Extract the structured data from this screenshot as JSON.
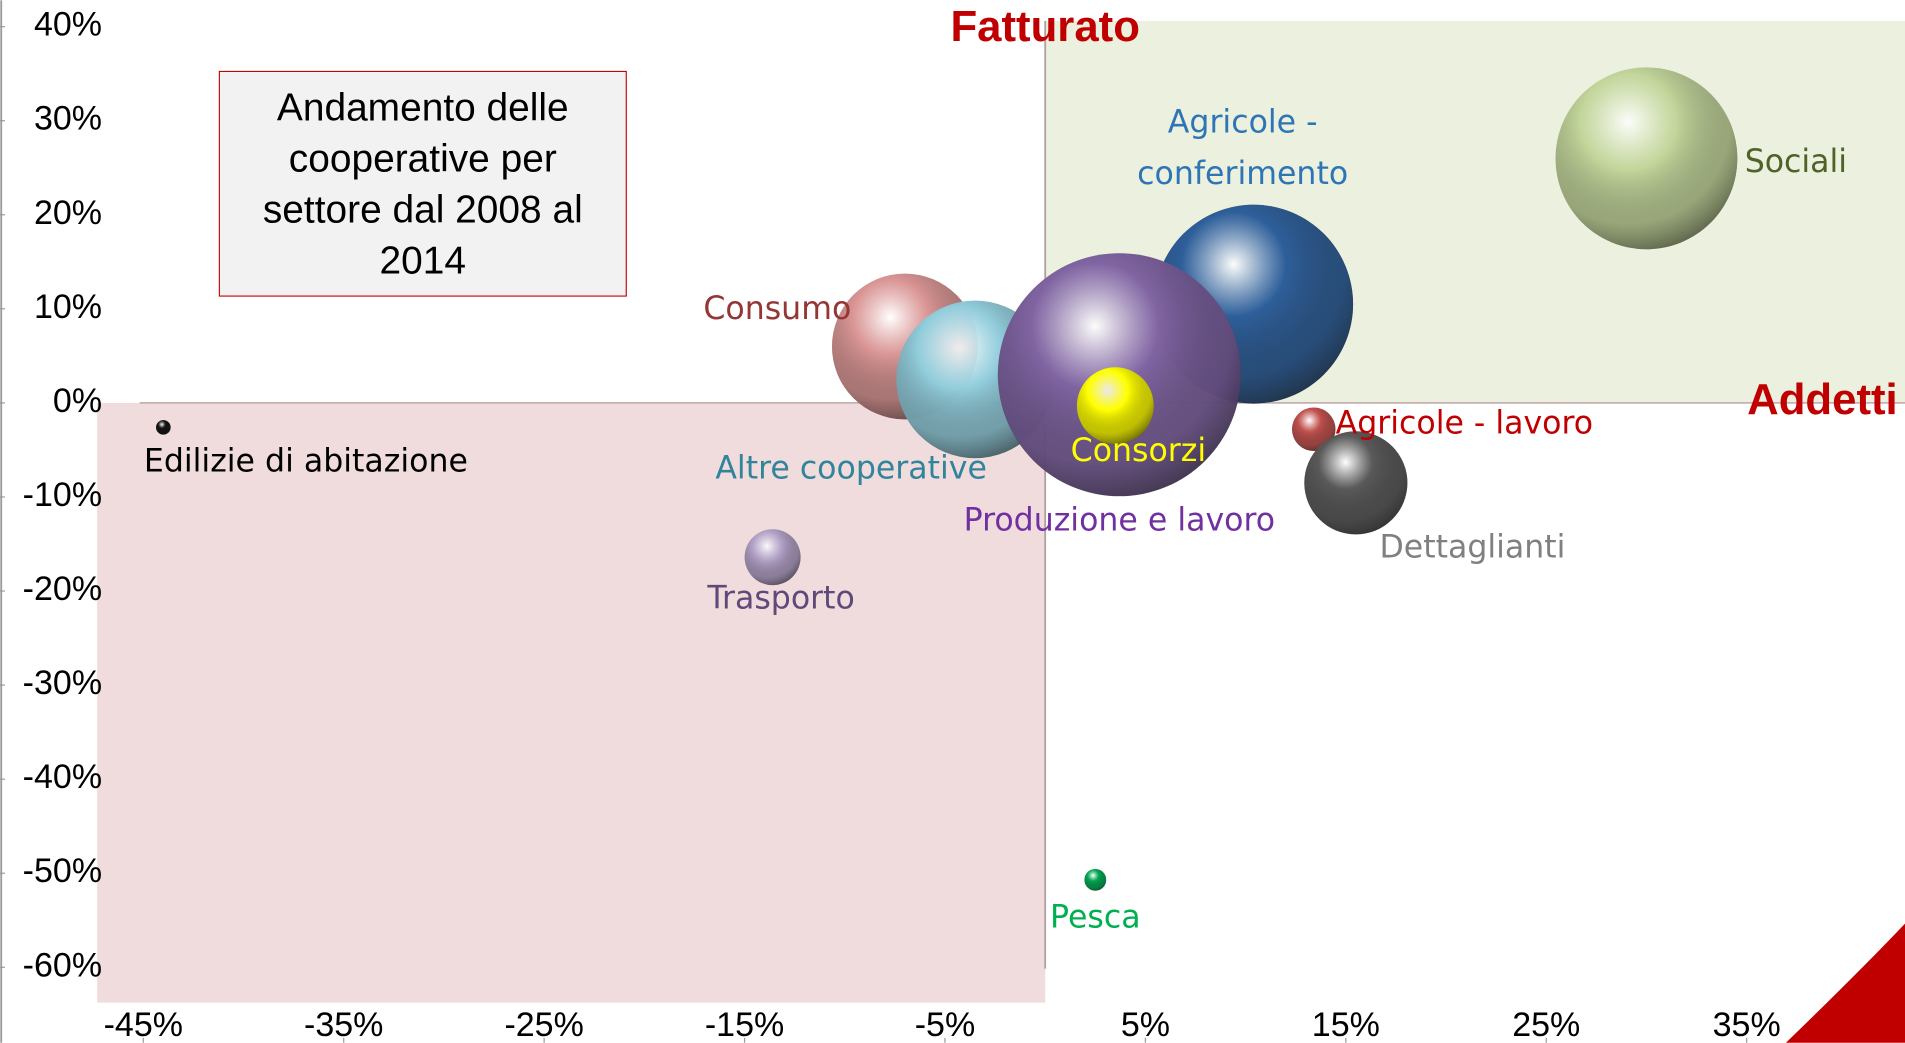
{
  "chart_data": {
    "type": "bubble",
    "title": "Andamento delle cooperative per settore dal 2008 al 2014",
    "x_label": "Addetti",
    "y_label": "Fatturato",
    "xlim": [
      -47.3,
      42.9
    ],
    "ylim": [
      -64.4,
      42.8
    ],
    "xticks": [
      {
        "value": -45,
        "label": "-45%"
      },
      {
        "value": -35,
        "label": "-35%"
      },
      {
        "value": -25,
        "label": "-25%"
      },
      {
        "value": -15,
        "label": "-15%"
      },
      {
        "value": -5,
        "label": "-5%"
      },
      {
        "value": 5,
        "label": "5%"
      },
      {
        "value": 15,
        "label": "15%"
      },
      {
        "value": 25,
        "label": "25%"
      },
      {
        "value": 35,
        "label": "35%"
      }
    ],
    "yticks": [
      {
        "value": 40,
        "label": "40%"
      },
      {
        "value": 30,
        "label": "30%"
      },
      {
        "value": 20,
        "label": "20%"
      },
      {
        "value": 10,
        "label": "10%"
      },
      {
        "value": 0,
        "label": "0%"
      },
      {
        "value": -10,
        "label": "-10%"
      },
      {
        "value": -20,
        "label": "-20%"
      },
      {
        "value": -30,
        "label": "-30%"
      },
      {
        "value": -40,
        "label": "-40%"
      },
      {
        "value": -50,
        "label": "-50%"
      },
      {
        "value": -60,
        "label": "-60%"
      }
    ],
    "points": [
      {
        "name": "Edilizie di abitazione",
        "x": -44,
        "y": -2.6,
        "size": 0.36,
        "color": "#111111",
        "label_color": "#000000"
      },
      {
        "name": "Consumo",
        "x": -7,
        "y": 6,
        "size": 36,
        "color": "#d99594",
        "label_color": "#943634"
      },
      {
        "name": "Altre cooperative",
        "x": -3.5,
        "y": 2.5,
        "size": 42,
        "color": "#92cddc",
        "label_color": "#31849b"
      },
      {
        "name": "Produzione e lavoro",
        "x": 3.7,
        "y": 3,
        "size": 100,
        "color": "#8064a2",
        "label_color": "#7030a0"
      },
      {
        "name": "Agricole - conferimento",
        "x": 10.4,
        "y": 10.5,
        "size": 67,
        "color": "#2e5f9a",
        "label_color": "#2e75b6"
      },
      {
        "name": "Sociali",
        "x": 30,
        "y": 26,
        "size": 56,
        "color": "#c3d69b",
        "label_color": "#4f6228"
      },
      {
        "name": "Consorzi",
        "x": 3.5,
        "y": -0.3,
        "size": 10,
        "color": "#ffff00",
        "label_color": "#ffff00"
      },
      {
        "name": "Agricole - lavoro",
        "x": 13.4,
        "y": -2.8,
        "size": 3.2,
        "color": "#c0504d",
        "label_color": "#c00000"
      },
      {
        "name": "Dettaglianti",
        "x": 15.5,
        "y": -8.5,
        "size": 18,
        "color": "#595959",
        "label_color": "#808080"
      },
      {
        "name": "Trasporto",
        "x": -13.6,
        "y": -16.4,
        "size": 5.3,
        "color": "#b2a1c7",
        "label_color": "#5f497a"
      },
      {
        "name": "Pesca",
        "x": 2.5,
        "y": -50.7,
        "size": 0.8,
        "color": "#00a651",
        "label_color": "#00b050"
      }
    ]
  }
}
